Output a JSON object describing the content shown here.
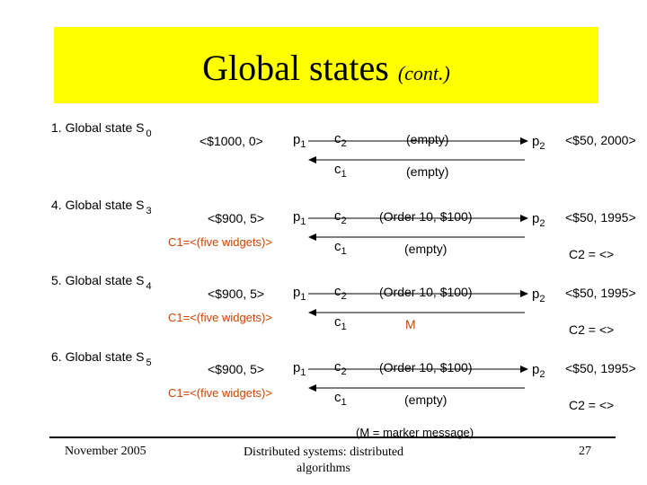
{
  "title": {
    "main": "Global states",
    "sub": "(cont.)"
  },
  "states": [
    {
      "label": "1. Global state S",
      "index": "0",
      "p1_value": "<$1000, 0>",
      "p1_record": "",
      "p2_value": "<$50, 2000>",
      "p2_record": "",
      "c2_msg": "(empty)",
      "c1_msg": "(empty)",
      "c1_marker": false
    },
    {
      "label": "4. Global state S",
      "index": "3",
      "p1_value": "<$900, 5>",
      "p1_record": "C1=<(five widgets)>",
      "p2_value": "<$50, 1995>",
      "p2_record": "C2 = <>",
      "c2_msg": "(Order 10, $100)",
      "c1_msg": "(empty)",
      "c1_marker": false
    },
    {
      "label": "5. Global state S",
      "index": "4",
      "p1_value": "<$900, 5>",
      "p1_record": "C1=<(five widgets)>",
      "p2_value": "<$50, 1995>",
      "p2_record": "C2 = <>",
      "c2_msg": "(Order 10, $100)",
      "c1_msg": "M",
      "c1_marker": true
    },
    {
      "label": "6. Global state S",
      "index": "5",
      "p1_value": "<$900, 5>",
      "p1_record": "C1=<(five widgets)>",
      "p2_value": "<$50, 1995>",
      "p2_record": "C2 = <>",
      "c2_msg": "(Order 10, $100)",
      "c1_msg": "(empty)",
      "c1_marker": false
    }
  ],
  "labels": {
    "p": "p",
    "c": "c",
    "one": "1",
    "two": "2"
  },
  "note": "(M = marker message)",
  "footer": {
    "date": "November 2005",
    "course": "Distributed systems: distributed algorithms",
    "page": "27"
  }
}
